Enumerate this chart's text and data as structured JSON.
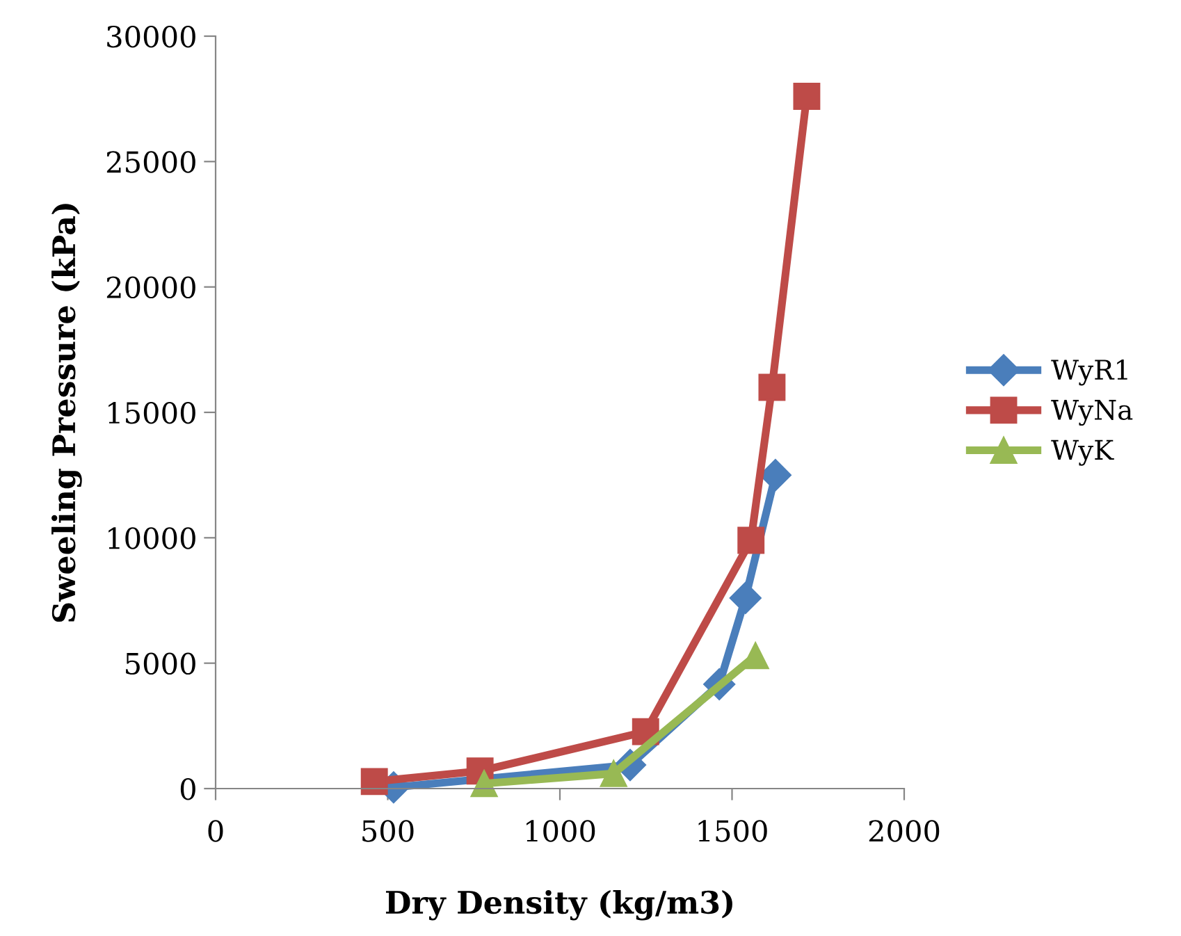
{
  "chart_data": {
    "type": "line",
    "xlabel": "Dry Density (kg/m3)",
    "ylabel": "Sweeling Pressure (kPa)",
    "xlim": [
      0,
      2000
    ],
    "xticks": [
      0,
      500,
      1000,
      1500,
      2000
    ],
    "ylim": [
      0,
      30000
    ],
    "yticks": [
      0,
      5000,
      10000,
      15000,
      20000,
      25000,
      30000
    ],
    "grid": false,
    "legend": "right",
    "series": [
      {
        "name": "WyR1",
        "color": "#4a7ebb",
        "marker": "diamond",
        "x": [
          517,
          1204,
          1463,
          1539,
          1626
        ],
        "values": [
          50,
          940,
          4160,
          7600,
          12500
        ]
      },
      {
        "name": "WyNa",
        "color": "#be4b48",
        "marker": "square",
        "x": [
          461,
          768,
          1249,
          1555,
          1616,
          1717
        ],
        "values": [
          280,
          700,
          2270,
          9900,
          16000,
          27600
        ]
      },
      {
        "name": "WyK",
        "color": "#98b954",
        "marker": "triangle",
        "x": [
          780,
          1156,
          1568
        ],
        "values": [
          200,
          600,
          5300
        ]
      }
    ]
  }
}
